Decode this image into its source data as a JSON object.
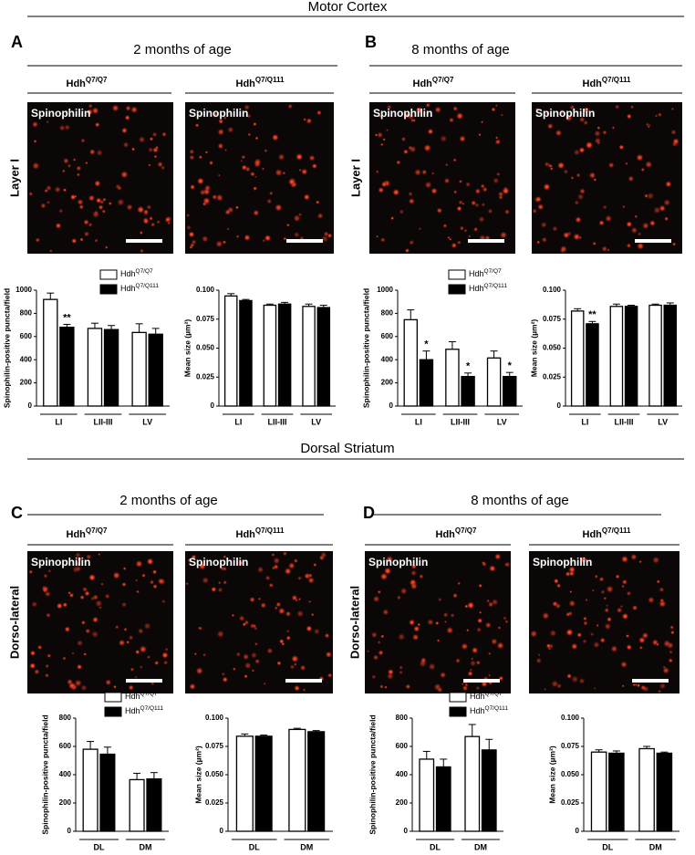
{
  "sections": [
    {
      "title": "Motor Cortex",
      "panels": [
        {
          "letter": "A",
          "age": "2 months of age",
          "region_label": "Layer I",
          "genotypes": [
            {
              "base": "Hdh",
              "sup": "Q7/Q7"
            },
            {
              "base": "Hdh",
              "sup": "Q7/Q111"
            }
          ],
          "image_labels": [
            "Spinophilin",
            "Spinophilin"
          ],
          "charts": [
            {
              "type": "bar",
              "ylabel": "Spinophilin-positive puncta/field",
              "ylim": [
                0,
                1000
              ],
              "yticks": [
                0,
                200,
                400,
                600,
                800,
                1000
              ],
              "legend": true,
              "categories": [
                "LI",
                "LII-III",
                "LV"
              ],
              "series": [
                {
                  "name": "Hdh",
                  "name_sup": "Q7/Q7",
                  "color": "#ffffff",
                  "values": [
                    920,
                    670,
                    635
                  ],
                  "errors": [
                    55,
                    45,
                    75
                  ]
                },
                {
                  "name": "Hdh",
                  "name_sup": "Q7/Q111",
                  "color": "#000000",
                  "values": [
                    680,
                    660,
                    620
                  ],
                  "errors": [
                    25,
                    35,
                    50
                  ],
                  "annotations": [
                    "**",
                    null,
                    null
                  ]
                }
              ]
            },
            {
              "type": "bar",
              "ylabel": "Mean size (µm²)",
              "ylim": [
                0,
                0.1
              ],
              "yticks": [
                0,
                0.025,
                {
                  "value": 0.05,
                  "label": "0.050"
                },
                0.075,
                {
                  "value": 0.1,
                  "label": "0.100"
                }
              ],
              "legend": false,
              "categories": [
                "LI",
                "LII-III",
                "LV"
              ],
              "series": [
                {
                  "name": "Hdh",
                  "name_sup": "Q7/Q7",
                  "color": "#ffffff",
                  "values": [
                    0.095,
                    0.087,
                    0.086
                  ],
                  "errors": [
                    0.002,
                    0.001,
                    0.002
                  ]
                },
                {
                  "name": "Hdh",
                  "name_sup": "Q7/Q111",
                  "color": "#000000",
                  "values": [
                    0.091,
                    0.088,
                    0.085
                  ],
                  "errors": [
                    0.001,
                    0.0015,
                    0.002
                  ]
                }
              ]
            }
          ]
        },
        {
          "letter": "B",
          "age": "8 months of age",
          "region_label": "Layer I",
          "genotypes": [
            {
              "base": "Hdh",
              "sup": "Q7/Q7"
            },
            {
              "base": "Hdh",
              "sup": "Q7/Q111"
            }
          ],
          "image_labels": [
            "Spinophilin",
            "Spinophilin"
          ],
          "charts": [
            {
              "type": "bar",
              "ylabel": "Spinophilin-positive puncta/field",
              "ylim": [
                0,
                1000
              ],
              "yticks": [
                0,
                200,
                400,
                600,
                800,
                1000
              ],
              "legend": true,
              "categories": [
                "LI",
                "LII-III",
                "LV"
              ],
              "series": [
                {
                  "name": "Hdh",
                  "name_sup": "Q7/Q7",
                  "color": "#ffffff",
                  "values": [
                    745,
                    490,
                    415
                  ],
                  "errors": [
                    85,
                    65,
                    60
                  ]
                },
                {
                  "name": "Hdh",
                  "name_sup": "Q7/Q111",
                  "color": "#000000",
                  "values": [
                    400,
                    255,
                    255
                  ],
                  "errors": [
                    75,
                    30,
                    35
                  ],
                  "annotations": [
                    "*",
                    "*",
                    "*"
                  ]
                }
              ]
            },
            {
              "type": "bar",
              "ylabel": "Mean size (µm²)",
              "ylim": [
                0,
                0.1
              ],
              "yticks": [
                0,
                0.025,
                {
                  "value": 0.05,
                  "label": "0.050"
                },
                0.075,
                {
                  "value": 0.1,
                  "label": "0.100"
                }
              ],
              "legend": false,
              "categories": [
                "LI",
                "LII-III",
                "LV"
              ],
              "series": [
                {
                  "name": "Hdh",
                  "name_sup": "Q7/Q7",
                  "color": "#ffffff",
                  "values": [
                    0.082,
                    0.086,
                    0.087
                  ],
                  "errors": [
                    0.002,
                    0.002,
                    0.001
                  ]
                },
                {
                  "name": "Hdh",
                  "name_sup": "Q7/Q111",
                  "color": "#000000",
                  "values": [
                    0.071,
                    0.086,
                    0.087
                  ],
                  "errors": [
                    0.002,
                    0.001,
                    0.002
                  ],
                  "annotations": [
                    "**",
                    null,
                    null
                  ]
                }
              ]
            }
          ]
        }
      ]
    },
    {
      "title": "Dorsal Striatum",
      "panels": [
        {
          "letter": "C",
          "age": "2 months of age",
          "region_label": "Dorso-lateral",
          "genotypes": [
            {
              "base": "Hdh",
              "sup": "Q7/Q7"
            },
            {
              "base": "Hdh",
              "sup": "Q7/Q111"
            }
          ],
          "image_labels": [
            "Spinophilin",
            "Spinophilin"
          ],
          "charts": [
            {
              "type": "bar",
              "ylabel": "Spinophilin-positive puncta/field",
              "ylim": [
                0,
                800
              ],
              "yticks": [
                0,
                200,
                400,
                600,
                800
              ],
              "legend": true,
              "categories": [
                "DL",
                "DM"
              ],
              "series": [
                {
                  "name": "Hdh",
                  "name_sup": "Q7/Q7",
                  "color": "#ffffff",
                  "values": [
                    580,
                    365
                  ],
                  "errors": [
                    55,
                    45
                  ]
                },
                {
                  "name": "Hdh",
                  "name_sup": "Q7/Q111",
                  "color": "#000000",
                  "values": [
                    545,
                    370
                  ],
                  "errors": [
                    50,
                    45
                  ]
                }
              ]
            },
            {
              "type": "bar",
              "ylabel": "Mean size (µm²)",
              "ylim": [
                0,
                0.1
              ],
              "yticks": [
                0,
                0.025,
                {
                  "value": 0.05,
                  "label": "0.050"
                },
                0.075,
                {
                  "value": 0.1,
                  "label": "0.100"
                }
              ],
              "legend": false,
              "categories": [
                "DL",
                "DM"
              ],
              "series": [
                {
                  "name": "Hdh",
                  "name_sup": "Q7/Q7",
                  "color": "#ffffff",
                  "values": [
                    0.084,
                    0.09
                  ],
                  "errors": [
                    0.002,
                    0.001
                  ]
                },
                {
                  "name": "Hdh",
                  "name_sup": "Q7/Q111",
                  "color": "#000000",
                  "values": [
                    0.084,
                    0.088
                  ],
                  "errors": [
                    0.001,
                    0.001
                  ]
                }
              ]
            }
          ]
        },
        {
          "letter": "D",
          "age": "8 months of age",
          "region_label": "Dorso-lateral",
          "genotypes": [
            {
              "base": "Hdh",
              "sup": "Q7/Q7"
            },
            {
              "base": "Hdh",
              "sup": "Q7/Q111"
            }
          ],
          "image_labels": [
            "Spinophilin",
            "Spinophilin"
          ],
          "charts": [
            {
              "type": "bar",
              "ylabel": "Spinophilin-positive puncta/field",
              "ylim": [
                0,
                800
              ],
              "yticks": [
                0,
                200,
                400,
                600,
                800
              ],
              "legend": true,
              "categories": [
                "DL",
                "DM"
              ],
              "series": [
                {
                  "name": "Hdh",
                  "name_sup": "Q7/Q7",
                  "color": "#ffffff",
                  "values": [
                    510,
                    670
                  ],
                  "errors": [
                    55,
                    85
                  ]
                },
                {
                  "name": "Hdh",
                  "name_sup": "Q7/Q111",
                  "color": "#000000",
                  "values": [
                    455,
                    575
                  ],
                  "errors": [
                    55,
                    75
                  ]
                }
              ]
            },
            {
              "type": "bar",
              "ylabel": "Mean size (µm²)",
              "ylim": [
                0,
                0.1
              ],
              "yticks": [
                0,
                0.025,
                {
                  "value": 0.05,
                  "label": "0.050"
                },
                0.075,
                {
                  "value": 0.1,
                  "label": "0.100"
                }
              ],
              "legend": false,
              "categories": [
                "DL",
                "DM"
              ],
              "series": [
                {
                  "name": "Hdh",
                  "name_sup": "Q7/Q7",
                  "color": "#ffffff",
                  "values": [
                    0.07,
                    0.073
                  ],
                  "errors": [
                    0.002,
                    0.002
                  ]
                },
                {
                  "name": "Hdh",
                  "name_sup": "Q7/Q111",
                  "color": "#000000",
                  "values": [
                    0.069,
                    0.069
                  ],
                  "errors": [
                    0.002,
                    0.001
                  ]
                }
              ]
            }
          ]
        }
      ]
    }
  ]
}
